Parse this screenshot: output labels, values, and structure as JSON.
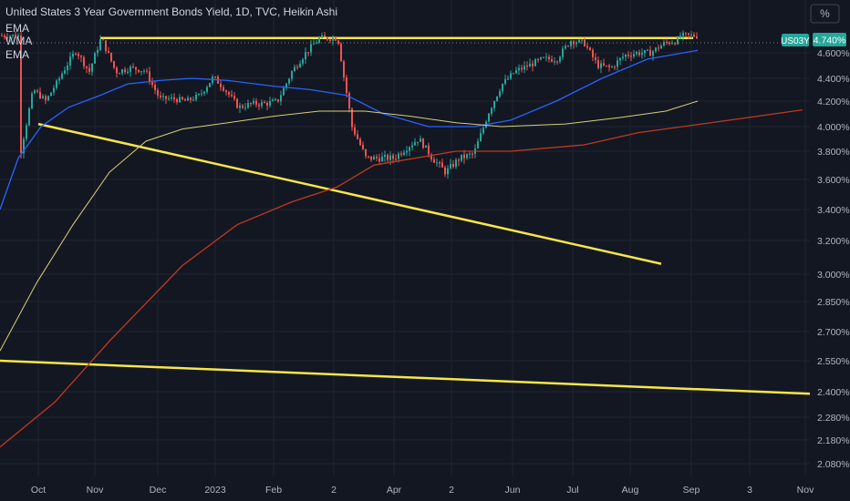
{
  "header": {
    "title": "United States 3 Year Government Bonds Yield, 1D, TVC, Heikin Ashi",
    "indicators": [
      "EMA",
      "WMA",
      "EMA"
    ]
  },
  "scale_button": "%",
  "price_tag": {
    "symbol": "US03Y",
    "value": "4.740%"
  },
  "colors": {
    "background": "#131722",
    "grid": "#1f2433",
    "up": "#26a69a",
    "down": "#ef5350",
    "ema_fast": "#2962ff",
    "wma": "#d8cf7a",
    "ema_slow": "#c0391f",
    "trendline": "#f7e64a",
    "axis_text": "#b2b5be"
  },
  "chart_data": {
    "type": "candlestick",
    "title": "United States 3 Year Government Bonds Yield, 1D, TVC, Heikin Ashi",
    "y_scale": "log",
    "yaxis_ticks": [
      "4.600%",
      "4.400%",
      "4.200%",
      "4.000%",
      "3.800%",
      "3.600%",
      "3.400%",
      "3.200%",
      "3.000%",
      "2.850%",
      "2.700%",
      "2.550%",
      "2.400%",
      "2.280%",
      "2.180%",
      "2.080%"
    ],
    "xaxis_ticks": [
      "Oct",
      "Nov",
      "Dec",
      "2023",
      "Feb",
      "2",
      "Apr",
      "2",
      "Jun",
      "Jul",
      "Aug",
      "Sep",
      "3",
      "Nov"
    ],
    "candles_approx": [
      [
        "Sep 20",
        3.78
      ],
      [
        "Sep 28",
        4.3
      ],
      [
        "Oct 5",
        4.2
      ],
      [
        "Oct 14",
        4.45
      ],
      [
        "Oct 21",
        4.62
      ],
      [
        "Oct 28",
        4.45
      ],
      [
        "Nov 4",
        4.72
      ],
      [
        "Nov 11",
        4.45
      ],
      [
        "Nov 18",
        4.48
      ],
      [
        "Nov 25",
        4.46
      ],
      [
        "Dec 2",
        4.22
      ],
      [
        "Dec 9",
        4.22
      ],
      [
        "Dec 16",
        4.2
      ],
      [
        "Dec 23",
        4.25
      ],
      [
        "Dec 30",
        4.41
      ],
      [
        "Jan 6",
        4.3
      ],
      [
        "Jan 13",
        4.15
      ],
      [
        "Jan 20",
        4.18
      ],
      [
        "Jan 27",
        4.18
      ],
      [
        "Feb 3",
        4.2
      ],
      [
        "Feb 10",
        4.45
      ],
      [
        "Feb 17",
        4.6
      ],
      [
        "Feb 24",
        4.72
      ],
      [
        "Mar 3",
        4.72
      ],
      [
        "Mar 10",
        4.0
      ],
      [
        "Mar 17",
        3.75
      ],
      [
        "Mar 24",
        3.75
      ],
      [
        "Mar 31",
        3.75
      ],
      [
        "Apr 7",
        3.82
      ],
      [
        "Apr 14",
        3.9
      ],
      [
        "Apr 21",
        3.75
      ],
      [
        "Apr 28",
        3.65
      ],
      [
        "May 5",
        3.75
      ],
      [
        "May 12",
        3.78
      ],
      [
        "May 19",
        4.1
      ],
      [
        "May 26",
        4.35
      ],
      [
        "Jun 2",
        4.45
      ],
      [
        "Jun 9",
        4.5
      ],
      [
        "Jun 16",
        4.55
      ],
      [
        "Jun 23",
        4.55
      ],
      [
        "Jun 30",
        4.7
      ],
      [
        "Jul 7",
        4.68
      ],
      [
        "Jul 14",
        4.5
      ],
      [
        "Jul 21",
        4.48
      ],
      [
        "Jul 28",
        4.58
      ],
      [
        "Aug 4",
        4.6
      ],
      [
        "Aug 11",
        4.6
      ],
      [
        "Aug 18",
        4.68
      ],
      [
        "Aug 25",
        4.7
      ],
      [
        "Sep 1",
        4.65
      ],
      [
        "Sep 6",
        4.74
      ]
    ],
    "series": [
      {
        "type": "line",
        "values": [
          3.4,
          3.75,
          4.0,
          4.15,
          4.25,
          4.35,
          4.38,
          4.4,
          4.38,
          4.33,
          4.3,
          4.25,
          4.1,
          4.0,
          4.0,
          4.05,
          4.2,
          4.4,
          4.55,
          4.62
        ]
      },
      {
        "type": "line",
        "values": [
          2.6,
          2.95,
          3.3,
          3.65,
          3.88,
          3.98,
          4.03,
          4.08,
          4.12,
          4.12,
          4.08,
          4.03,
          4.0,
          4.02,
          4.07,
          4.12,
          4.2
        ]
      },
      {
        "type": "line",
        "values": [
          2.15,
          2.35,
          2.65,
          3.05,
          3.3,
          3.45,
          3.55,
          3.7,
          3.8,
          3.8,
          3.85,
          3.95,
          4.05,
          4.13
        ]
      }
    ],
    "trendlines": [
      {
        "from": [
          "Nov 2022",
          4.72
        ],
        "to": [
          "Sep 2023",
          4.72
        ]
      },
      {
        "from": [
          "Oct 2022",
          4.02
        ],
        "to": [
          "Aug 2023",
          3.06
        ]
      },
      {
        "from": [
          "Sep 2022",
          2.55
        ],
        "to": [
          "Nov 2023",
          2.39
        ]
      }
    ],
    "last_value": 4.74
  }
}
